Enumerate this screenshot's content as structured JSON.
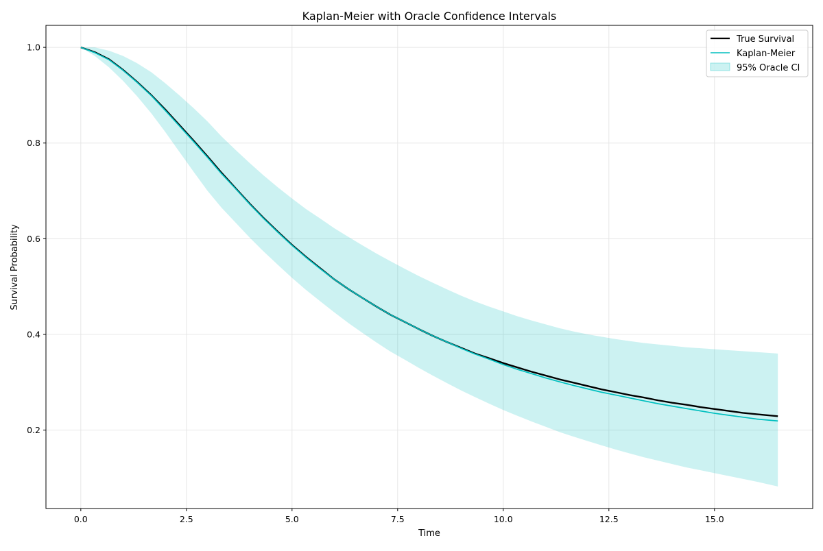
{
  "chart_data": {
    "type": "line",
    "title": "Kaplan-Meier with Oracle Confidence Intervals",
    "xlabel": "Time",
    "ylabel": "Survival Probability",
    "xlim": [
      -0.825,
      17.325
    ],
    "ylim": [
      0.036,
      1.046
    ],
    "xticks": [
      0.0,
      2.5,
      5.0,
      7.5,
      10.0,
      12.5,
      15.0
    ],
    "xtick_labels": [
      "0.0",
      "2.5",
      "5.0",
      "7.5",
      "10.0",
      "12.5",
      "15.0"
    ],
    "yticks": [
      0.2,
      0.4,
      0.6,
      0.8,
      1.0
    ],
    "ytick_labels": [
      "0.2",
      "0.4",
      "0.6",
      "0.8",
      "1.0"
    ],
    "grid": true,
    "legend_position": "top-right",
    "colors": {
      "true_survival": "#000000",
      "kaplan_meier": "#00bfbf",
      "ci_fill": "#00bfbf"
    },
    "x": [
      0.0,
      0.33,
      0.67,
      1.0,
      1.33,
      1.67,
      2.0,
      2.33,
      2.67,
      3.0,
      3.33,
      3.67,
      4.0,
      4.33,
      4.67,
      5.0,
      5.33,
      5.67,
      6.0,
      6.33,
      6.67,
      7.0,
      7.33,
      7.67,
      8.0,
      8.33,
      8.67,
      9.0,
      9.33,
      9.67,
      10.0,
      10.33,
      10.67,
      11.0,
      11.33,
      11.67,
      12.0,
      12.33,
      12.67,
      13.0,
      13.33,
      13.67,
      14.0,
      14.33,
      14.67,
      15.0,
      15.33,
      15.67,
      16.0,
      16.5
    ],
    "series": [
      {
        "name": "True Survival",
        "style": "line",
        "values": [
          1.0,
          0.99,
          0.975,
          0.953,
          0.928,
          0.9,
          0.87,
          0.838,
          0.805,
          0.772,
          0.738,
          0.705,
          0.673,
          0.643,
          0.614,
          0.587,
          0.562,
          0.538,
          0.515,
          0.495,
          0.476,
          0.458,
          0.441,
          0.426,
          0.411,
          0.397,
          0.384,
          0.372,
          0.36,
          0.35,
          0.34,
          0.331,
          0.322,
          0.314,
          0.306,
          0.299,
          0.292,
          0.285,
          0.279,
          0.273,
          0.268,
          0.262,
          0.257,
          0.253,
          0.248,
          0.244,
          0.24,
          0.236,
          0.233,
          0.229
        ]
      },
      {
        "name": "Kaplan-Meier",
        "style": "line",
        "values": [
          1.0,
          0.989,
          0.974,
          0.952,
          0.927,
          0.899,
          0.868,
          0.836,
          0.803,
          0.77,
          0.736,
          0.704,
          0.672,
          0.642,
          0.613,
          0.586,
          0.561,
          0.537,
          0.515,
          0.495,
          0.476,
          0.458,
          0.441,
          0.426,
          0.411,
          0.397,
          0.384,
          0.371,
          0.359,
          0.348,
          0.337,
          0.327,
          0.318,
          0.309,
          0.301,
          0.293,
          0.286,
          0.279,
          0.273,
          0.267,
          0.261,
          0.255,
          0.25,
          0.245,
          0.24,
          0.235,
          0.231,
          0.227,
          0.223,
          0.219
        ]
      },
      {
        "name": "95% Oracle CI",
        "style": "band",
        "upper": [
          1.0,
          1.0,
          0.993,
          0.982,
          0.967,
          0.948,
          0.925,
          0.9,
          0.873,
          0.845,
          0.814,
          0.785,
          0.758,
          0.732,
          0.707,
          0.684,
          0.662,
          0.642,
          0.622,
          0.604,
          0.586,
          0.569,
          0.553,
          0.537,
          0.522,
          0.508,
          0.494,
          0.481,
          0.469,
          0.458,
          0.448,
          0.438,
          0.429,
          0.421,
          0.413,
          0.406,
          0.4,
          0.395,
          0.39,
          0.386,
          0.382,
          0.379,
          0.376,
          0.373,
          0.371,
          0.369,
          0.367,
          0.365,
          0.363,
          0.36
        ],
        "lower": [
          1.0,
          0.982,
          0.958,
          0.93,
          0.898,
          0.862,
          0.823,
          0.782,
          0.74,
          0.7,
          0.665,
          0.633,
          0.602,
          0.573,
          0.545,
          0.518,
          0.493,
          0.469,
          0.446,
          0.424,
          0.403,
          0.383,
          0.364,
          0.347,
          0.33,
          0.314,
          0.298,
          0.283,
          0.269,
          0.255,
          0.242,
          0.23,
          0.218,
          0.207,
          0.196,
          0.186,
          0.177,
          0.168,
          0.159,
          0.151,
          0.143,
          0.136,
          0.129,
          0.122,
          0.116,
          0.11,
          0.104,
          0.098,
          0.092,
          0.082
        ]
      }
    ]
  }
}
